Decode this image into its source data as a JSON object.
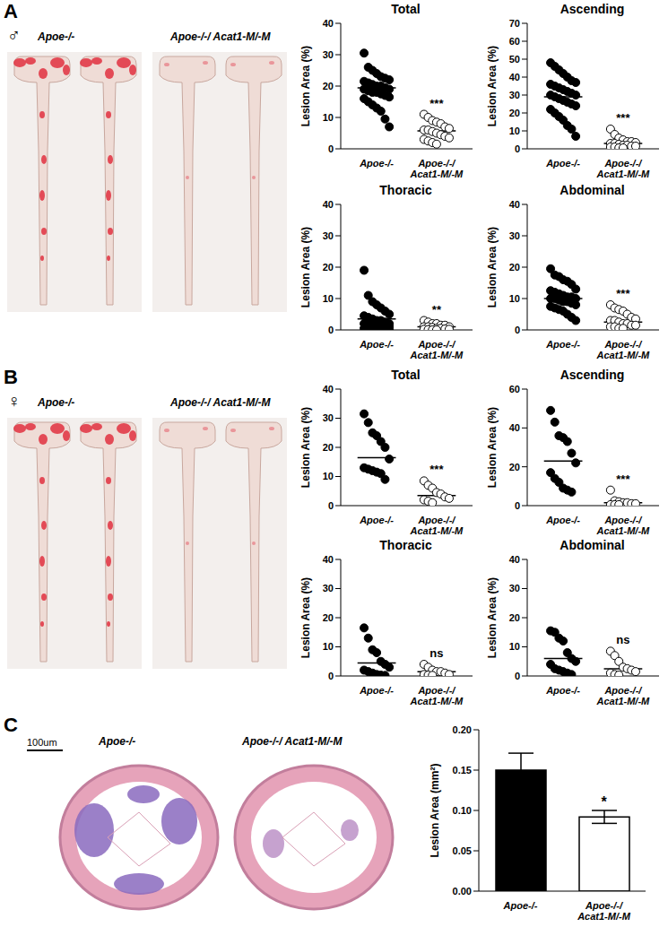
{
  "panels": [
    {
      "label": "A",
      "symbol": "♂",
      "image_captions": [
        "Apoe-/-",
        "Apoe-/-/ Acat1-M/-M"
      ]
    },
    {
      "label": "B",
      "symbol": "♀",
      "image_captions": [
        "Apoe-/-",
        "Apoe-/-/ Acat1-M/-M"
      ]
    },
    {
      "label": "C",
      "image_captions": [
        "Apoe-/-",
        "Apoe-/-/ Acat1-M/-M"
      ],
      "scale_bar": "100um"
    }
  ],
  "chart_data": [
    {
      "type": "scatter",
      "title": "Total",
      "y_label": "Lesion Area (%)",
      "ylim": [
        0,
        40
      ],
      "yticks": [
        0,
        10,
        20,
        30,
        40
      ],
      "annotation": "***",
      "series": [
        {
          "name": "Apoe-/-",
          "color": "#000000",
          "marker": "filled_circle",
          "mean": 19.4,
          "values": [
            30.5,
            26,
            25,
            24,
            23,
            22.5,
            22,
            21.5,
            21,
            20.5,
            20,
            20,
            19.5,
            19,
            19,
            18.5,
            18,
            18,
            17.5,
            17,
            16.5,
            16,
            15,
            14,
            13,
            12,
            9.5,
            7
          ]
        },
        {
          "name": "Apoe-/-/ Acat1-M/-M",
          "color": "#000000",
          "marker": "open_circle",
          "mean": 5.7,
          "values": [
            11,
            10,
            9,
            8.5,
            8,
            7,
            6.5,
            6,
            6,
            5.5,
            5,
            4.5,
            4,
            3.5,
            3,
            2.5,
            2,
            1.5
          ]
        }
      ]
    },
    {
      "type": "scatter",
      "title": "Ascending",
      "y_label": "Lesion Area (%)",
      "ylim": [
        0,
        70
      ],
      "yticks": [
        0,
        10,
        20,
        30,
        40,
        50,
        60,
        70
      ],
      "annotation": "***",
      "series": [
        {
          "name": "Apoe-/-",
          "color": "#000000",
          "marker": "filled_circle",
          "mean": 29,
          "values": [
            48,
            46,
            44,
            42,
            40,
            38,
            37,
            36,
            35,
            34,
            33,
            32,
            31,
            30,
            30,
            29,
            28,
            27,
            26,
            25,
            24,
            22,
            20,
            18,
            16,
            13,
            11,
            7
          ]
        },
        {
          "name": "Apoe-/-/ Acat1-M/-M",
          "color": "#000000",
          "marker": "open_circle",
          "mean": 3,
          "values": [
            11,
            8,
            6,
            5,
            4,
            4,
            3.5,
            3,
            3,
            2.5,
            2,
            2,
            1.5,
            1.5,
            1,
            1,
            0.5,
            0.5
          ]
        }
      ]
    },
    {
      "type": "scatter",
      "title": "Thoracic",
      "y_label": "Lesion Area (%)",
      "ylim": [
        0,
        40
      ],
      "yticks": [
        0,
        10,
        20,
        30,
        40
      ],
      "annotation": "**",
      "series": [
        {
          "name": "Apoe-/-",
          "color": "#000000",
          "marker": "filled_circle",
          "mean": 3.5,
          "values": [
            19,
            11,
            9,
            8,
            7,
            6,
            5,
            4.5,
            4,
            3.5,
            3,
            3,
            2.5,
            2,
            2,
            2,
            1.5,
            1.5,
            1,
            1,
            1,
            0.5,
            0.5,
            0.5,
            0.3,
            0.2,
            0.1,
            0
          ]
        },
        {
          "name": "Apoe-/-/ Acat1-M/-M",
          "color": "#000000",
          "marker": "open_circle",
          "mean": 1,
          "values": [
            3,
            2.5,
            2,
            2,
            1.5,
            1.5,
            1,
            1,
            1,
            0.8,
            0.5,
            0.5,
            0.3,
            0.2,
            0.2,
            0.1,
            0,
            0
          ]
        }
      ]
    },
    {
      "type": "scatter",
      "title": "Abdominal",
      "y_label": "Lesion Area (%)",
      "ylim": [
        0,
        40
      ],
      "yticks": [
        0,
        10,
        20,
        30,
        40
      ],
      "annotation": "***",
      "series": [
        {
          "name": "Apoe-/-",
          "color": "#000000",
          "marker": "filled_circle",
          "mean": 10,
          "values": [
            19.5,
            17.5,
            17,
            16,
            15.5,
            14.5,
            13,
            12.5,
            12,
            11.5,
            11,
            10.5,
            10.5,
            10,
            10,
            10,
            9.5,
            9,
            9,
            8.5,
            8,
            7.5,
            7,
            6.5,
            6,
            5,
            4,
            3
          ]
        },
        {
          "name": "Apoe-/-/ Acat1-M/-M",
          "color": "#000000",
          "marker": "open_circle",
          "mean": 2.5,
          "values": [
            8,
            7,
            6.5,
            6,
            5,
            4,
            3.5,
            3,
            3,
            2.5,
            2,
            2,
            1.5,
            1.5,
            1,
            1,
            0.5,
            0.5
          ]
        }
      ]
    },
    {
      "type": "scatter",
      "title": "Total",
      "y_label": "Lesion Area (%)",
      "ylim": [
        0,
        40
      ],
      "yticks": [
        0,
        10,
        20,
        30,
        40
      ],
      "annotation": "***",
      "series": [
        {
          "name": "Apoe-/-",
          "color": "#000000",
          "marker": "filled_circle",
          "mean": 16.5,
          "values": [
            31.5,
            28.5,
            25,
            24,
            22,
            20,
            16,
            13,
            12.5,
            12,
            11.5,
            11,
            9
          ]
        },
        {
          "name": "Apoe-/-/ Acat1-M/-M",
          "color": "#000000",
          "marker": "open_circle",
          "mean": 3.5,
          "values": [
            8.5,
            7,
            6,
            4.5,
            4,
            3,
            2.5,
            2,
            1.5,
            1
          ]
        }
      ]
    },
    {
      "type": "scatter",
      "title": "Ascending",
      "y_label": "Lesion Area (%)",
      "ylim": [
        0,
        60
      ],
      "yticks": [
        0,
        20,
        40,
        60
      ],
      "annotation": "***",
      "series": [
        {
          "name": "Apoe-/-",
          "color": "#000000",
          "marker": "filled_circle",
          "mean": 23,
          "values": [
            49,
            43,
            36,
            35,
            33,
            27,
            22,
            17,
            14,
            12,
            9,
            8,
            7
          ]
        },
        {
          "name": "Apoe-/-/ Acat1-M/-M",
          "color": "#000000",
          "marker": "open_circle",
          "mean": 1.5,
          "values": [
            8,
            2.5,
            2,
            1.5,
            1.5,
            1,
            1,
            0.5,
            0.5,
            0.5
          ]
        }
      ]
    },
    {
      "type": "scatter",
      "title": "Thoracic",
      "y_label": "Lesion Area (%)",
      "ylim": [
        0,
        40
      ],
      "yticks": [
        0,
        10,
        20,
        30,
        40
      ],
      "annotation": "ns",
      "series": [
        {
          "name": "Apoe-/-",
          "color": "#000000",
          "marker": "filled_circle",
          "mean": 4.5,
          "values": [
            16.5,
            13,
            9,
            8,
            5,
            4,
            3,
            2,
            1.5,
            1,
            0.5,
            0.3,
            0.2
          ]
        },
        {
          "name": "Apoe-/-/ Acat1-M/-M",
          "color": "#000000",
          "marker": "open_circle",
          "mean": 1.5,
          "values": [
            4,
            3,
            2,
            1.5,
            1.5,
            1,
            0.5,
            0.5,
            0.3,
            0.2
          ]
        }
      ]
    },
    {
      "type": "scatter",
      "title": "Abdominal",
      "y_label": "Lesion Area (%)",
      "ylim": [
        0,
        40
      ],
      "yticks": [
        0,
        10,
        20,
        30,
        40
      ],
      "annotation": "ns",
      "series": [
        {
          "name": "Apoe-/-",
          "color": "#000000",
          "marker": "filled_circle",
          "mean": 6,
          "values": [
            15.5,
            15,
            13,
            12,
            8,
            6,
            5,
            4,
            2.5,
            2,
            1.5,
            1,
            0.5
          ]
        },
        {
          "name": "Apoe-/-/ Acat1-M/-M",
          "color": "#000000",
          "marker": "open_circle",
          "mean": 2.5,
          "values": [
            8.5,
            7,
            5,
            3,
            2.5,
            2,
            1.5,
            1,
            0.5,
            0.3
          ]
        }
      ]
    },
    {
      "type": "bar",
      "y_label": "Lesion Area (mm²)",
      "categories": [
        "Apoe-/-",
        "Apoe-/-/ Acat1-M/-M"
      ],
      "values": [
        0.15,
        0.092
      ],
      "errors": [
        0.021,
        0.008
      ],
      "colors": [
        "#000000",
        "#ffffff"
      ],
      "ylim": [
        0,
        0.2
      ],
      "yticks": [
        {
          "value": 0,
          "label": "0.00"
        },
        {
          "value": 0.05,
          "label": "0.05"
        },
        {
          "value": 0.1,
          "label": "0.10"
        },
        {
          "value": 0.15,
          "label": "0.15"
        },
        {
          "value": 0.2,
          "label": "0.20"
        }
      ],
      "annotation": "*"
    }
  ]
}
